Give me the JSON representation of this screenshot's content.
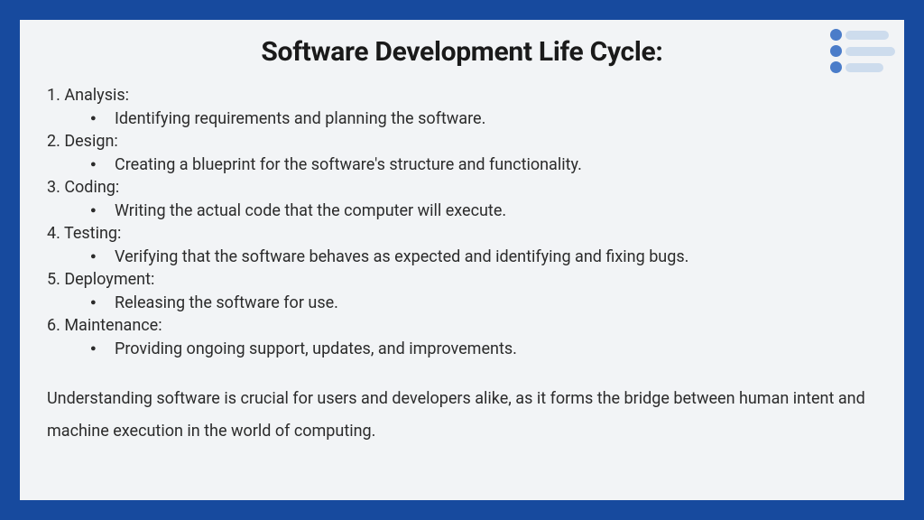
{
  "title": "Software Development Life Cycle:",
  "phases": [
    {
      "num": "1",
      "name": "Analysis",
      "desc": "Identifying requirements and planning the software."
    },
    {
      "num": "2",
      "name": "Design",
      "desc": "Creating a blueprint for the software's structure and functionality."
    },
    {
      "num": "3",
      "name": "Coding",
      "desc": "Writing the actual code that the computer will execute."
    },
    {
      "num": "4",
      "name": "Testing",
      "desc": "Verifying that the software behaves as expected and identifying and fixing bugs."
    },
    {
      "num": "5",
      "name": "Deployment",
      "desc": "Releasing the software for use."
    },
    {
      "num": "6",
      "name": "Maintenance",
      "desc": "Providing ongoing support, updates, and improvements."
    }
  ],
  "conclusion": "Understanding software is crucial for users and developers alike, as it forms the bridge between human intent and machine execution in the world of computing.",
  "colors": {
    "frame_border": "#174a9e",
    "slide_bg": "#f2f4f6",
    "text": "#2b2b2b",
    "title_text": "#1a1a1a",
    "icon_dot": "#4a7cc9",
    "icon_line": "#cddced"
  },
  "typography": {
    "title_fontsize": 30,
    "body_fontsize": 18,
    "title_weight": 700,
    "body_weight": 400
  }
}
